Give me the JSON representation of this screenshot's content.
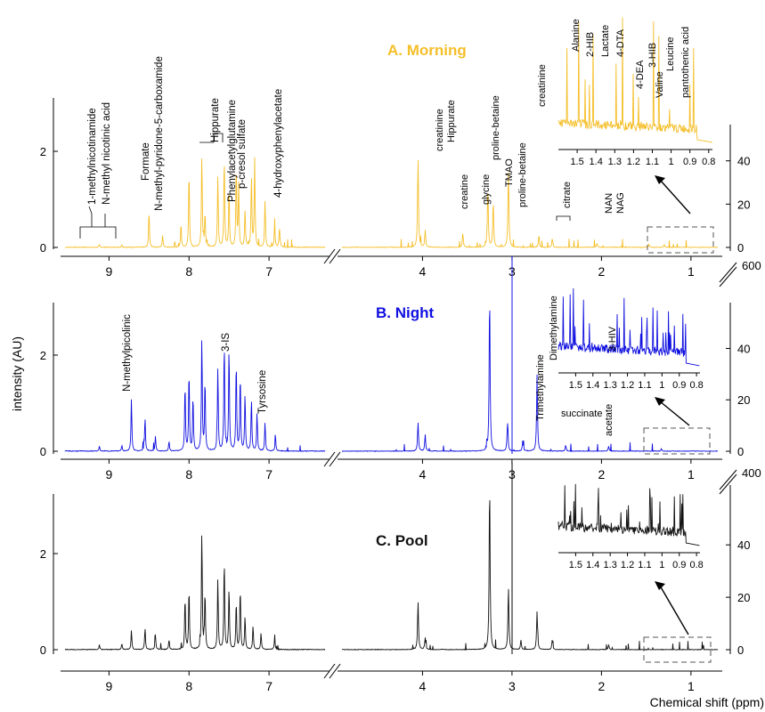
{
  "figure": {
    "ylabel": "intensity (AU)",
    "xlabel": "Chemical shift (ppm)"
  },
  "colors": {
    "morning": "#f5bf2a",
    "night": "#1010e0",
    "pool": "#111111",
    "axis": "#000000",
    "dash": "#555555"
  },
  "axes": {
    "left_xticks": [
      "9",
      "8",
      "7"
    ],
    "right_xticks": [
      "4",
      "3",
      "2",
      "1"
    ],
    "left_yticks": [
      "0",
      "2"
    ],
    "right_yticks_top": [
      "0",
      "20",
      "40"
    ],
    "right_yticks_mid": [
      "0",
      "20",
      "40"
    ],
    "right_yticks_bot": [
      "0",
      "20",
      "40"
    ],
    "break_values": [
      "600",
      "400"
    ],
    "inset_ticks": [
      "1.5",
      "1.4",
      "1.3",
      "1.2",
      "1.1",
      "1",
      "0.9",
      "0.8"
    ]
  },
  "chart_data": [
    {
      "type": "line",
      "title": "A. Morning",
      "color": "#f5bf2a",
      "left_xlim": [
        9.55,
        6.3
      ],
      "right_xlim": [
        4.9,
        0.7
      ],
      "left_ylim": [
        0,
        3
      ],
      "right_ylim_aux": [
        0,
        50
      ],
      "series": [
        {
          "name": "A. Morning",
          "peaks": [
            [
              9.12,
              0.05
            ],
            [
              8.84,
              0.05
            ],
            [
              8.5,
              0.72
            ],
            [
              8.33,
              0.25
            ],
            [
              8.1,
              0.5
            ],
            [
              8.0,
              1.62
            ],
            [
              7.84,
              1.95
            ],
            [
              7.8,
              0.7
            ],
            [
              7.64,
              1.5
            ],
            [
              7.56,
              1.9
            ],
            [
              7.5,
              1.2
            ],
            [
              7.41,
              1.7
            ],
            [
              7.38,
              1.3
            ],
            [
              7.3,
              0.8
            ],
            [
              7.22,
              1.5
            ],
            [
              7.18,
              1.85
            ],
            [
              7.05,
              1.0
            ],
            [
              6.93,
              0.5
            ],
            [
              6.87,
              0.42
            ],
            [
              4.05,
              1.85
            ],
            [
              3.97,
              0.35
            ],
            [
              3.55,
              0.3
            ],
            [
              3.27,
              1.25
            ],
            [
              3.21,
              0.95
            ],
            [
              3.04,
              1.62
            ],
            [
              2.7,
              0.22
            ],
            [
              2.55,
              0.18
            ],
            [
              2.05,
              0.08
            ],
            [
              1.3,
              0.06
            ],
            [
              1.47,
              0.06
            ]
          ]
        }
      ],
      "annotations": [
        "1-methylnicotinamide",
        "N-methyl nicotinic acid",
        "Formate",
        "N-methyl-pyridone-5-carboxamide",
        "Hippurate",
        "Phenylacetylglutamine",
        "p-cresol sulfate",
        "4-hydroxyphenylacetate",
        "creatinine",
        "Hippurate",
        "creatine",
        "glycine",
        "proline-betaine",
        "TMAO",
        "proline-betaine",
        "creatinine",
        "citrate",
        "NAN",
        "NAG"
      ],
      "inset": {
        "xlim": [
          1.6,
          0.78
        ],
        "annotations": [
          "Alanine",
          "2-HIB",
          "Lactate",
          "4-DTA",
          "4-DEA",
          "3-HIB",
          "Valine",
          "Leucine",
          "pantothenic acid"
        ]
      }
    },
    {
      "type": "line",
      "title": "B. Night",
      "color": "#1010e0",
      "left_xlim": [
        9.55,
        6.3
      ],
      "right_xlim": [
        4.9,
        0.7
      ],
      "left_ylim": [
        0,
        3
      ],
      "right_ylim_aux": [
        0,
        50
      ],
      "series": [
        {
          "name": "B. Night",
          "peaks": [
            [
              9.12,
              0.1
            ],
            [
              8.84,
              0.12
            ],
            [
              8.72,
              1.1
            ],
            [
              8.55,
              0.7
            ],
            [
              8.42,
              0.3
            ],
            [
              8.25,
              0.2
            ],
            [
              8.05,
              1.4
            ],
            [
              8.0,
              1.7
            ],
            [
              7.95,
              1.1
            ],
            [
              7.84,
              2.4
            ],
            [
              7.8,
              1.5
            ],
            [
              7.64,
              1.75
            ],
            [
              7.56,
              2.3
            ],
            [
              7.5,
              2.2
            ],
            [
              7.41,
              1.9
            ],
            [
              7.36,
              1.6
            ],
            [
              7.3,
              1.2
            ],
            [
              7.22,
              1.1
            ],
            [
              7.15,
              0.8
            ],
            [
              7.05,
              0.6
            ],
            [
              6.92,
              0.3
            ],
            [
              4.05,
              0.6
            ],
            [
              3.97,
              0.35
            ],
            [
              3.25,
              3.3
            ],
            [
              3.05,
              0.6
            ],
            [
              2.88,
              0.2
            ],
            [
              2.72,
              1.6
            ],
            [
              2.4,
              0.12
            ],
            [
              1.92,
              0.1
            ],
            [
              1.33,
              0.05
            ]
          ]
        }
      ],
      "annotations": [
        "N-methylpicolinic",
        "3-IS",
        "Tyrsosine",
        "Trimethylamine",
        "Dimethylamine",
        "3-HIV",
        "succinate",
        "acetate"
      ],
      "inset": {
        "xlim": [
          1.6,
          0.78
        ],
        "annotations": []
      }
    },
    {
      "type": "line",
      "title": "C. Pool",
      "color": "#111111",
      "left_xlim": [
        9.55,
        6.3
      ],
      "right_xlim": [
        4.9,
        0.7
      ],
      "left_ylim": [
        0,
        3
      ],
      "right_ylim_aux": [
        0,
        50
      ],
      "series": [
        {
          "name": "C. Pool",
          "peaks": [
            [
              9.12,
              0.1
            ],
            [
              8.84,
              0.12
            ],
            [
              8.72,
              0.4
            ],
            [
              8.55,
              0.45
            ],
            [
              8.42,
              0.3
            ],
            [
              8.25,
              0.2
            ],
            [
              8.05,
              1.1
            ],
            [
              8.0,
              1.3
            ],
            [
              7.84,
              2.5
            ],
            [
              7.8,
              1.2
            ],
            [
              7.64,
              1.5
            ],
            [
              7.56,
              1.9
            ],
            [
              7.5,
              1.3
            ],
            [
              7.41,
              1.0
            ],
            [
              7.36,
              1.3
            ],
            [
              7.3,
              0.7
            ],
            [
              7.2,
              0.5
            ],
            [
              7.1,
              0.35
            ],
            [
              6.93,
              0.25
            ],
            [
              4.05,
              1.0
            ],
            [
              3.97,
              0.25
            ],
            [
              3.25,
              3.5
            ],
            [
              3.04,
              1.3
            ],
            [
              2.9,
              0.2
            ],
            [
              2.72,
              0.8
            ],
            [
              2.55,
              0.2
            ],
            [
              1.92,
              0.1
            ]
          ]
        }
      ],
      "annotations": [],
      "inset": {
        "xlim": [
          1.6,
          0.78
        ],
        "annotations": []
      }
    }
  ]
}
